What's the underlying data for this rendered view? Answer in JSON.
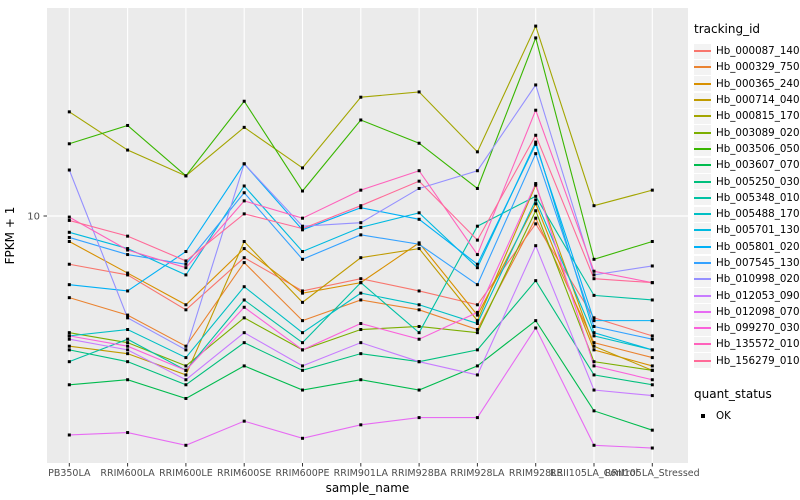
{
  "chart_data": {
    "type": "line",
    "title": "",
    "xlabel": "sample_name",
    "ylabel": "FPKM + 1",
    "y_scale": "log10",
    "y_ticks": [
      10
    ],
    "ylim": [
      1.02,
      68
    ],
    "grid": true,
    "legend_position": "right",
    "point_marker": "filled-square",
    "point_color": "#000000",
    "categories": [
      "PB350LA",
      "RRIM600LA",
      "RRIM600LE",
      "RRIM600SE",
      "RRIM600PE",
      "RRIM901LA",
      "RRIM928BA",
      "RRIM928LA",
      "RRIM928LE",
      "RRII105LA_Control",
      "RRII105LA_Stressed"
    ],
    "series": [
      {
        "name": "Hb_000087_140",
        "color": "#F8766D",
        "values": [
          6.4,
          5.8,
          4.2,
          6.8,
          5.0,
          5.6,
          5.0,
          4.4,
          9.3,
          3.9,
          3.3
        ]
      },
      {
        "name": "Hb_000329_750",
        "color": "#EA8331",
        "values": [
          4.7,
          4.0,
          3.0,
          6.5,
          3.8,
          4.6,
          4.2,
          3.5,
          9.8,
          3.1,
          2.7
        ]
      },
      {
        "name": "Hb_000365_240",
        "color": "#D89000",
        "values": [
          7.9,
          5.9,
          4.4,
          7.4,
          4.9,
          5.4,
          7.8,
          4.0,
          11.2,
          2.9,
          2.5
        ]
      },
      {
        "name": "Hb_000714_040",
        "color": "#C09B00",
        "values": [
          3.0,
          2.8,
          2.3,
          7.9,
          4.5,
          6.8,
          7.4,
          3.8,
          13.3,
          3.0,
          2.4
        ]
      },
      {
        "name": "Hb_000815_170",
        "color": "#A3A500",
        "values": [
          26.2,
          18.4,
          14.5,
          22.7,
          15.6,
          30.0,
          31.5,
          18.1,
          57.9,
          11.0,
          12.7
        ]
      },
      {
        "name": "Hb_003089_020",
        "color": "#7CAE00",
        "values": [
          3.4,
          3.1,
          2.5,
          3.9,
          2.9,
          3.5,
          3.6,
          3.4,
          10.5,
          2.6,
          2.4
        ]
      },
      {
        "name": "Hb_003506_050",
        "color": "#39B600",
        "values": [
          19.5,
          23.1,
          14.5,
          28.9,
          12.6,
          24.3,
          19.6,
          12.9,
          51.9,
          6.7,
          7.9
        ]
      },
      {
        "name": "Hb_003607_070",
        "color": "#00BB4E",
        "values": [
          2.1,
          2.2,
          1.85,
          2.5,
          2.0,
          2.2,
          2.0,
          2.5,
          3.8,
          1.65,
          1.38
        ]
      },
      {
        "name": "Hb_005250_030",
        "color": "#00BF7D",
        "values": [
          2.9,
          2.6,
          2.1,
          3.1,
          2.4,
          2.8,
          2.6,
          2.9,
          5.5,
          2.3,
          2.1
        ]
      },
      {
        "name": "Hb_005348_010",
        "color": "#00C1A3",
        "values": [
          2.6,
          3.2,
          2.4,
          4.6,
          3.1,
          5.4,
          3.4,
          9.1,
          12.0,
          4.8,
          4.6
        ]
      },
      {
        "name": "Hb_005488_170",
        "color": "#00BFC4",
        "values": [
          3.3,
          3.5,
          2.7,
          5.2,
          3.4,
          4.9,
          4.4,
          3.7,
          11.6,
          3.3,
          2.9
        ]
      },
      {
        "name": "Hb_005701_130",
        "color": "#00BAE0",
        "values": [
          8.6,
          7.4,
          5.8,
          13.2,
          7.2,
          9.0,
          10.3,
          6.2,
          19.8,
          3.4,
          2.9
        ]
      },
      {
        "name": "Hb_005801_020",
        "color": "#00B0F6",
        "values": [
          5.3,
          5.0,
          7.2,
          16.2,
          8.8,
          10.8,
          9.7,
          6.4,
          19.4,
          3.8,
          3.8
        ]
      },
      {
        "name": "Hb_007545_130",
        "color": "#35A2FF",
        "values": [
          8.2,
          7.0,
          6.4,
          12.4,
          6.7,
          8.4,
          7.7,
          5.3,
          17.8,
          3.6,
          3.2
        ]
      },
      {
        "name": "Hb_010998_020",
        "color": "#9590FF",
        "values": [
          15.3,
          3.9,
          2.9,
          16.2,
          9.1,
          9.4,
          12.9,
          15.2,
          33.6,
          5.8,
          6.3
        ]
      },
      {
        "name": "Hb_012053_090",
        "color": "#C77CFF",
        "values": [
          3.2,
          2.9,
          2.2,
          3.4,
          2.5,
          3.1,
          2.6,
          2.3,
          7.6,
          2.0,
          1.9
        ]
      },
      {
        "name": "Hb_012098_070",
        "color": "#E76BF3",
        "values": [
          1.32,
          1.35,
          1.2,
          1.5,
          1.28,
          1.45,
          1.55,
          1.55,
          3.55,
          1.2,
          1.17
        ]
      },
      {
        "name": "Hb_099270_030",
        "color": "#FA62DB",
        "values": [
          3.3,
          3.0,
          2.4,
          4.3,
          2.9,
          3.7,
          3.2,
          4.1,
          13.5,
          2.5,
          2.2
        ]
      },
      {
        "name": "Hb_135572_010",
        "color": "#FF62BC",
        "values": [
          9.9,
          7.3,
          6.2,
          11.5,
          9.8,
          12.7,
          15.2,
          7.0,
          26.6,
          6.0,
          5.4
        ]
      },
      {
        "name": "Hb_156279_010",
        "color": "#FF6A98",
        "values": [
          9.6,
          8.3,
          6.6,
          10.2,
          8.9,
          11.0,
          13.8,
          8.0,
          21.1,
          5.6,
          5.4
        ]
      }
    ]
  },
  "legend": {
    "tracking_title": "tracking_id",
    "quant_title": "quant_status",
    "quant_items": [
      {
        "label": "OK"
      }
    ]
  },
  "colors": {
    "page_bg": "#FFFFFF",
    "panel_bg": "#EBEBEB",
    "grid": "#FFFFFF",
    "axis_text": "#4D4D4D",
    "axis_title": "#000000",
    "tick": "#333333",
    "legend_key_bg": "#F3F3F3",
    "point": "#000000"
  }
}
